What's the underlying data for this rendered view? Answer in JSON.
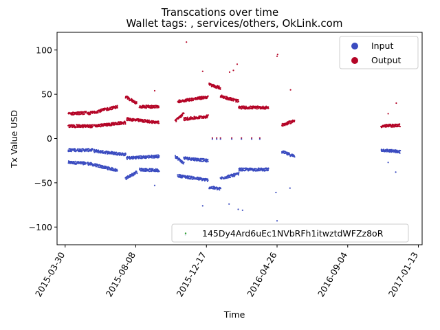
{
  "chart_data": {
    "type": "scatter",
    "title": "Transcations over time",
    "subtitle": "Wallet tags: , services/others, OkLink.com",
    "xlabel": "Time",
    "ylabel": "Tx Value USD",
    "x_axis_kind": "date",
    "xlim": [
      "2015-03-15",
      "2017-01-20"
    ],
    "ylim": [
      -120,
      120
    ],
    "x_ticks": [
      "2015-03-30",
      "2015-08-08",
      "2015-12-17",
      "2016-04-26",
      "2016-09-04",
      "2017-01-13"
    ],
    "y_ticks": [
      -100,
      -50,
      0,
      50,
      100
    ],
    "grid": false,
    "legend_position": "top-right",
    "colors": {
      "input": "#3b4cc0",
      "output": "#b40426",
      "address_marker": "#2ca02c"
    },
    "series": [
      {
        "name": "Input",
        "color": "#3b4cc0",
        "bands": [
          {
            "start": "2015-04-05",
            "end": "2015-05-08",
            "y_start": -27,
            "y_end": -28
          },
          {
            "start": "2015-05-10",
            "end": "2015-07-05",
            "y_start": -28,
            "y_end": -36
          },
          {
            "start": "2015-04-05",
            "end": "2015-05-20",
            "y_start": -13,
            "y_end": -13
          },
          {
            "start": "2015-05-22",
            "end": "2015-07-20",
            "y_start": -14,
            "y_end": -18
          },
          {
            "start": "2015-07-20",
            "end": "2015-08-10",
            "y_start": -45,
            "y_end": -38
          },
          {
            "start": "2015-07-22",
            "end": "2015-09-20",
            "y_start": -22,
            "y_end": -20
          },
          {
            "start": "2015-08-15",
            "end": "2015-09-20",
            "y_start": -35,
            "y_end": -36
          },
          {
            "start": "2015-10-20",
            "end": "2015-11-05",
            "y_start": -20,
            "y_end": -28
          },
          {
            "start": "2015-11-05",
            "end": "2015-12-20",
            "y_start": -22,
            "y_end": -25
          },
          {
            "start": "2015-10-25",
            "end": "2015-12-20",
            "y_start": -42,
            "y_end": -47
          },
          {
            "start": "2015-12-22",
            "end": "2016-01-12",
            "y_start": -55,
            "y_end": -57
          },
          {
            "start": "2016-01-12",
            "end": "2016-02-15",
            "y_start": -45,
            "y_end": -40
          },
          {
            "start": "2016-02-15",
            "end": "2016-04-10",
            "y_start": -35,
            "y_end": -35
          },
          {
            "start": "2016-05-05",
            "end": "2016-05-28",
            "y_start": -15,
            "y_end": -20
          },
          {
            "start": "2016-11-05",
            "end": "2016-12-10",
            "y_start": -13,
            "y_end": -15
          }
        ],
        "points": [
          {
            "x": "2015-11-08",
            "y": -109
          },
          {
            "x": "2016-04-26",
            "y": -93
          },
          {
            "x": "2016-01-28",
            "y": -74
          },
          {
            "x": "2016-02-14",
            "y": -80
          },
          {
            "x": "2016-02-22",
            "y": -81
          },
          {
            "x": "2015-12-10",
            "y": -76
          },
          {
            "x": "2015-09-12",
            "y": -53
          },
          {
            "x": "2016-05-20",
            "y": -56
          },
          {
            "x": "2016-04-24",
            "y": -61
          },
          {
            "x": "2016-12-02",
            "y": -38
          },
          {
            "x": "2016-11-18",
            "y": -27
          }
        ]
      },
      {
        "name": "Output",
        "color": "#b40426",
        "bands": [
          {
            "start": "2015-04-05",
            "end": "2015-05-08",
            "y_start": 28,
            "y_end": 29
          },
          {
            "start": "2015-05-10",
            "end": "2015-07-05",
            "y_start": 28,
            "y_end": 36
          },
          {
            "start": "2015-04-05",
            "end": "2015-05-20",
            "y_start": 14,
            "y_end": 14
          },
          {
            "start": "2015-05-22",
            "end": "2015-07-20",
            "y_start": 14,
            "y_end": 18
          },
          {
            "start": "2015-07-20",
            "end": "2015-08-10",
            "y_start": 47,
            "y_end": 40
          },
          {
            "start": "2015-07-22",
            "end": "2015-09-20",
            "y_start": 22,
            "y_end": 18
          },
          {
            "start": "2015-08-15",
            "end": "2015-09-20",
            "y_start": 36,
            "y_end": 36
          },
          {
            "start": "2015-10-20",
            "end": "2015-11-05",
            "y_start": 20,
            "y_end": 28
          },
          {
            "start": "2015-11-05",
            "end": "2015-12-20",
            "y_start": 22,
            "y_end": 25
          },
          {
            "start": "2015-10-25",
            "end": "2015-12-20",
            "y_start": 42,
            "y_end": 47
          },
          {
            "start": "2015-12-22",
            "end": "2016-01-12",
            "y_start": 61,
            "y_end": 57
          },
          {
            "start": "2016-01-12",
            "end": "2016-02-15",
            "y_start": 48,
            "y_end": 42
          },
          {
            "start": "2016-02-15",
            "end": "2016-04-10",
            "y_start": 35,
            "y_end": 35
          },
          {
            "start": "2016-05-05",
            "end": "2016-05-28",
            "y_start": 15,
            "y_end": 20
          },
          {
            "start": "2016-11-05",
            "end": "2016-12-10",
            "y_start": 14,
            "y_end": 15
          }
        ],
        "points": [
          {
            "x": "2015-11-10",
            "y": 109
          },
          {
            "x": "2016-04-27",
            "y": 95
          },
          {
            "x": "2016-04-26",
            "y": 93
          },
          {
            "x": "2016-02-12",
            "y": 84
          },
          {
            "x": "2016-01-29",
            "y": 75
          },
          {
            "x": "2016-02-05",
            "y": 77
          },
          {
            "x": "2015-12-10",
            "y": 76
          },
          {
            "x": "2015-09-12",
            "y": 54
          },
          {
            "x": "2016-05-21",
            "y": 55
          },
          {
            "x": "2016-12-03",
            "y": 40
          },
          {
            "x": "2016-11-18",
            "y": 28
          }
        ]
      },
      {
        "name": "145Dy4Ard6uEc1NVbRFh1itwztdWFZz8oR",
        "color": "#2ca02c",
        "points": []
      }
    ],
    "zero_points": [
      "2015-12-28",
      "2016-01-05",
      "2016-01-12",
      "2016-02-02",
      "2016-02-20",
      "2016-03-10",
      "2016-03-25"
    ]
  },
  "legend": {
    "upper": [
      {
        "label": "Input",
        "color": "#3b4cc0"
      },
      {
        "label": "Output",
        "color": "#b40426"
      }
    ],
    "lower": [
      {
        "label": "145Dy4Ard6uEc1NVbRFh1itwztdWFZz8oR",
        "color": "#2ca02c"
      }
    ]
  }
}
